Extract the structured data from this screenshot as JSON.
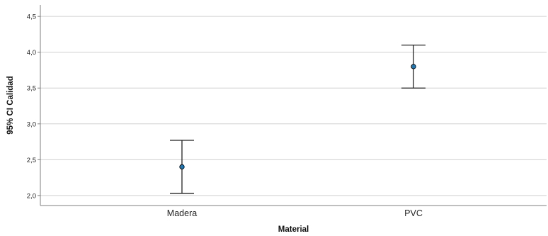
{
  "chart_data": {
    "type": "errorbar",
    "xlabel": "Material",
    "ylabel": "95% CI Calidad",
    "categories": [
      "Madera",
      "PVC"
    ],
    "series": [
      {
        "values": [
          2.4,
          3.8
        ],
        "ci_lower": [
          2.03,
          3.5
        ],
        "ci_upper": [
          2.77,
          4.1
        ]
      }
    ],
    "yticks": [
      "2,0",
      "2,5",
      "3,0",
      "3,5",
      "4,0",
      "4,5"
    ],
    "ytick_values": [
      2.0,
      2.5,
      3.0,
      3.5,
      4.0,
      4.5
    ],
    "ylim": [
      1.86,
      4.66
    ],
    "grid": true,
    "legend": "none",
    "colors": {
      "marker_fill": "#1f77b4",
      "marker_stroke": "#000000",
      "errorbar": "#222222",
      "grid": "#d0d0d0",
      "axis": "#7f7f7f"
    }
  }
}
